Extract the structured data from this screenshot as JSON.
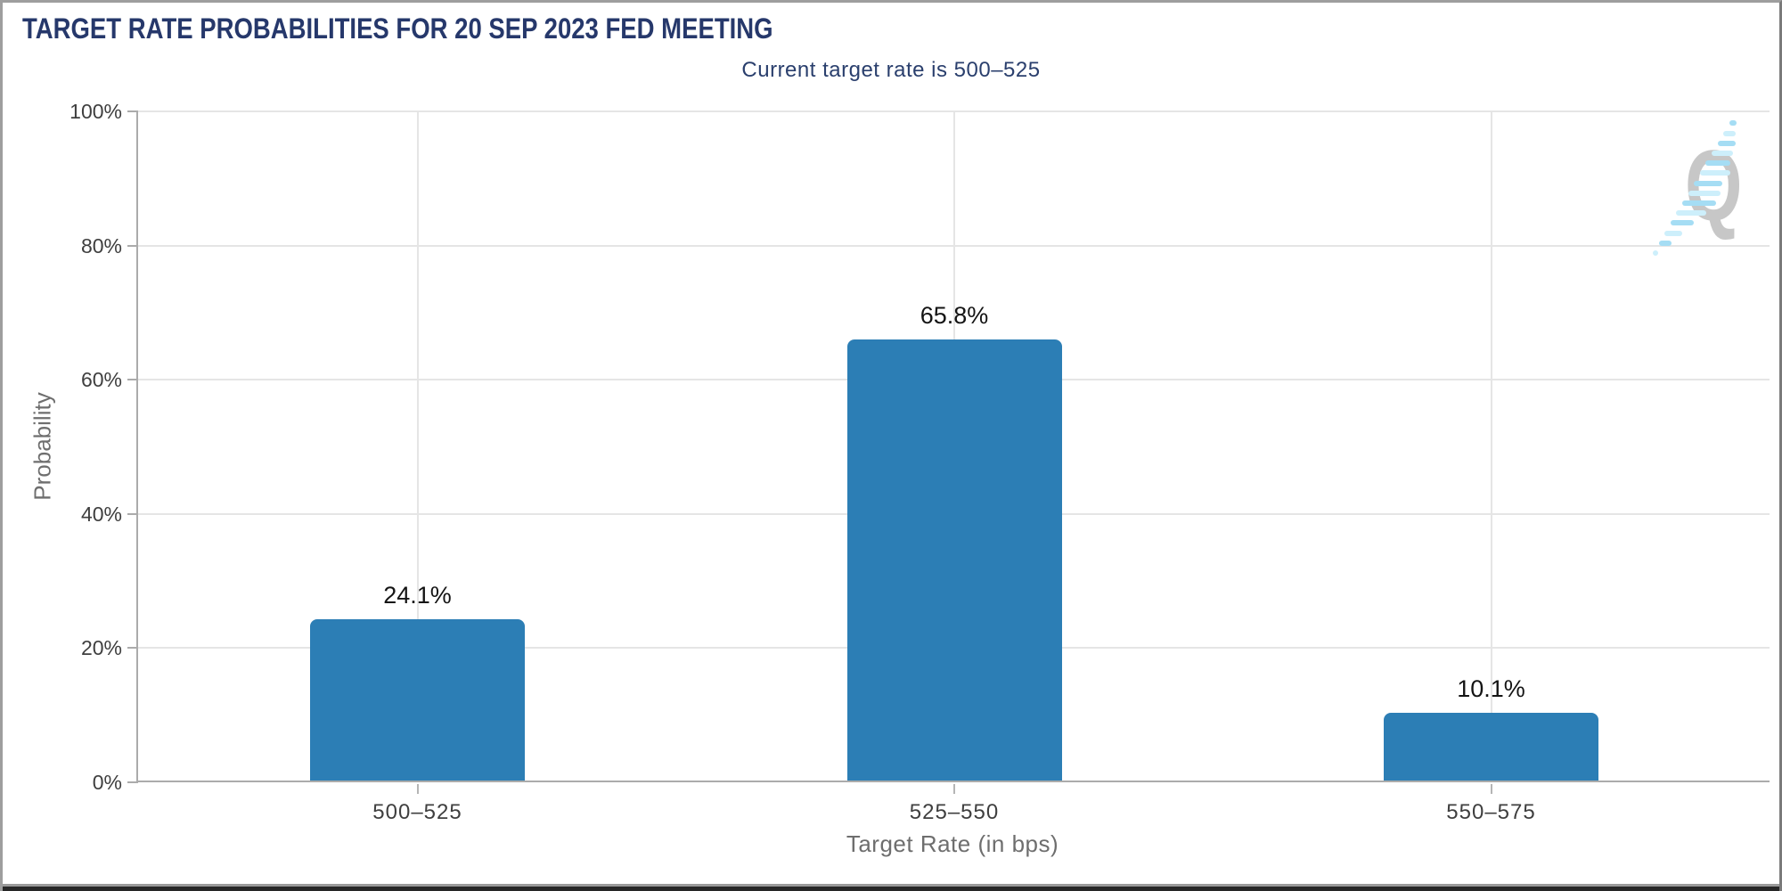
{
  "header": {
    "title": "TARGET RATE PROBABILITIES FOR 20 SEP 2023 FED MEETING",
    "subtitle": "Current target rate is 500–525"
  },
  "chart_data": {
    "type": "bar",
    "title": "TARGET RATE PROBABILITIES FOR 20 SEP 2023 FED MEETING",
    "subtitle": "Current target rate is 500–525",
    "categories": [
      "500–525",
      "525–550",
      "550–575"
    ],
    "values": [
      24.1,
      65.8,
      10.1
    ],
    "value_labels": [
      "24.1%",
      "65.8%",
      "10.1%"
    ],
    "xlabel": "Target Rate (in bps)",
    "ylabel": "Probability",
    "ylim": [
      0,
      100
    ],
    "yticks": [
      "0%",
      "20%",
      "40%",
      "60%",
      "80%",
      "100%"
    ],
    "ytick_values": [
      0,
      20,
      40,
      60,
      80,
      100
    ],
    "grid": true,
    "legend_position": "none"
  },
  "watermark": {
    "letter": "Q"
  },
  "colors": {
    "title_navy": "#26386b",
    "bar_blue": "#2c7eb5",
    "axis_line": "#ababab",
    "gridline": "#e5e5e5",
    "tick_label": "#3f3f3f",
    "axis_title": "#6e6e6e",
    "value_label": "#141414",
    "logo_gray": "#c7c7c7",
    "swoosh_blue": "#a5ddf4",
    "swoosh_light": "#cdeffb"
  }
}
